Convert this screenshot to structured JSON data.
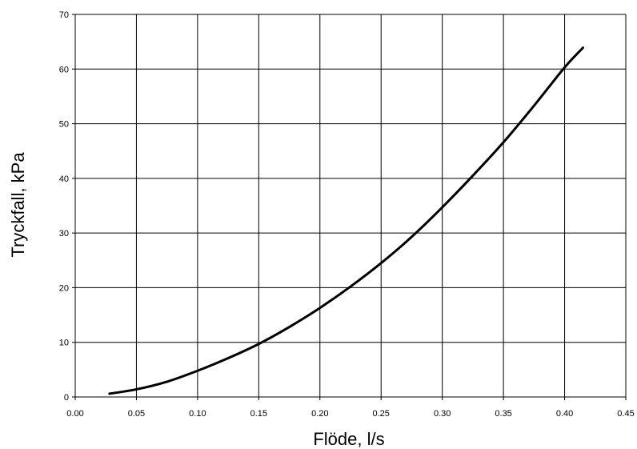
{
  "chart_data": {
    "type": "line",
    "title": "",
    "xlabel": "Flöde, l/s",
    "ylabel": "Tryckfall, kPa",
    "xlim": [
      0,
      0.45
    ],
    "ylim": [
      0,
      70
    ],
    "x_ticks": [
      "0.00",
      "0.05",
      "0.10",
      "0.15",
      "0.20",
      "0.25",
      "0.30",
      "0.35",
      "0.40",
      "0.45"
    ],
    "y_ticks": [
      "0",
      "10",
      "20",
      "30",
      "40",
      "50",
      "60",
      "70"
    ],
    "grid": true,
    "legend": "none",
    "line_color": "#000000",
    "series": [
      {
        "x": [
          0.028,
          0.05,
          0.075,
          0.1,
          0.125,
          0.15,
          0.175,
          0.2,
          0.225,
          0.25,
          0.275,
          0.3,
          0.325,
          0.35,
          0.375,
          0.4,
          0.415
        ],
        "values": [
          0.6,
          1.4,
          2.8,
          4.8,
          7.1,
          9.7,
          12.8,
          16.3,
          20.2,
          24.5,
          29.3,
          34.7,
          40.5,
          46.6,
          53.3,
          60.3,
          63.9
        ]
      }
    ]
  }
}
